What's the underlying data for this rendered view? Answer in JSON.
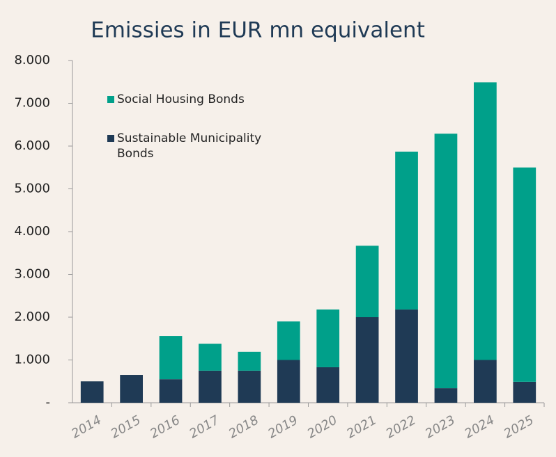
{
  "chart_data": {
    "type": "stacked-bar",
    "title": "Emissies in EUR mn equivalent",
    "categories": [
      "2014",
      "2015",
      "2016",
      "2017",
      "2018",
      "2019",
      "2020",
      "2021",
      "2022",
      "2023",
      "2024",
      "2025"
    ],
    "series": [
      {
        "name": "Sustainable Municipality Bonds",
        "color": "#1f3a55",
        "values": [
          500,
          650,
          550,
          750,
          750,
          1000,
          830,
          2000,
          2180,
          340,
          1000,
          490
        ]
      },
      {
        "name": "Social Housing Bonds",
        "color": "#00a08a",
        "values": [
          0,
          0,
          1010,
          630,
          440,
          900,
          1350,
          1670,
          3690,
          5950,
          6490,
          5010
        ]
      }
    ],
    "ylim": [
      0,
      8000
    ],
    "yticks": [
      {
        "value": 0,
        "label": "-"
      },
      {
        "value": 1000,
        "label": "1.000"
      },
      {
        "value": 2000,
        "label": "2.000"
      },
      {
        "value": 3000,
        "label": "3.000"
      },
      {
        "value": 4000,
        "label": "4.000"
      },
      {
        "value": 5000,
        "label": "5.000"
      },
      {
        "value": 6000,
        "label": "6.000"
      },
      {
        "value": 7000,
        "label": "7.000"
      },
      {
        "value": 8000,
        "label": "8.000"
      }
    ],
    "grid": false
  }
}
